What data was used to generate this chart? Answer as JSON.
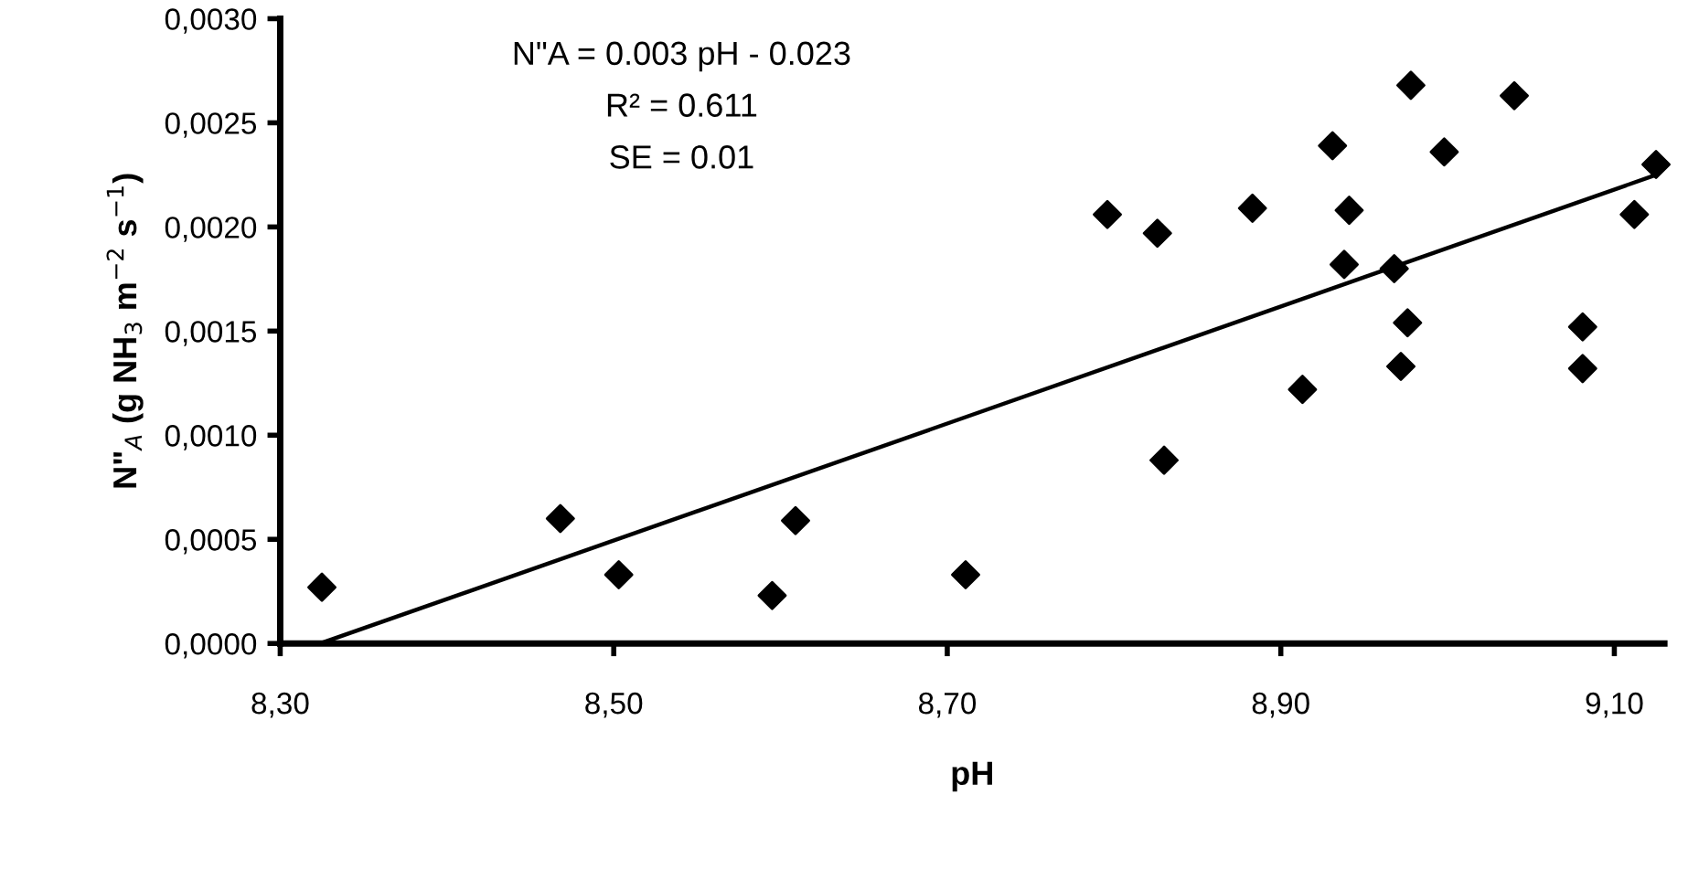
{
  "chart_data": {
    "type": "scatter",
    "xlabel": "pH",
    "ylabel": "N\"$_{A}$ (g NH$_{3}$ m$^{−2}$ s$^{−1}$)",
    "annotations": [
      "N\"A = 0.003 pH - 0.023",
      "R² = 0.611",
      "SE = 0.01"
    ],
    "series": [
      {
        "color": "#000000",
        "marker": "diamond",
        "x": [
          8.325,
          8.468,
          8.503,
          8.595,
          8.609,
          8.711,
          8.796,
          8.826,
          8.83,
          8.883,
          8.913,
          8.931,
          8.941,
          8.938,
          8.968,
          8.976,
          8.972,
          8.978,
          8.998,
          9.04,
          9.081,
          9.081,
          9.112,
          9.125
        ],
        "values": [
          0.00027,
          0.0006,
          0.00033,
          0.00023,
          0.00059,
          0.00033,
          0.00206,
          0.00197,
          0.00088,
          0.00209,
          0.00122,
          0.00239,
          0.00208,
          0.00182,
          0.0018,
          0.00154,
          0.00133,
          0.00268,
          0.00236,
          0.00263,
          0.00152,
          0.00132,
          0.00206,
          0.0023
        ]
      },
      {
        "type": "line",
        "color": "#000000",
        "marker": "none",
        "line_style": "solid",
        "x": [
          8.324,
          9.125
        ],
        "values": [
          0.0,
          0.00225
        ]
      }
    ],
    "xlim": [
      8.3,
      9.13
    ],
    "ylim": [
      0,
      0.003
    ],
    "xticks": [
      {
        "value": 8.3,
        "label": "8,30"
      },
      {
        "value": 8.5,
        "label": "8,50"
      },
      {
        "value": 8.7,
        "label": "8,70"
      },
      {
        "value": 8.9,
        "label": "8,90"
      },
      {
        "value": 9.1,
        "label": "9,10"
      }
    ],
    "yticks": [
      {
        "value": 0,
        "label": "0,0000"
      },
      {
        "value": 0.0005,
        "label": "0,0005"
      },
      {
        "value": 0.001,
        "label": "0,0010"
      },
      {
        "value": 0.0015,
        "label": "0,0015"
      },
      {
        "value": 0.002,
        "label": "0,0020"
      },
      {
        "value": 0.0025,
        "label": "0,0025"
      },
      {
        "value": 0.003,
        "label": "0,0030"
      }
    ],
    "grid": false,
    "legend": false
  }
}
